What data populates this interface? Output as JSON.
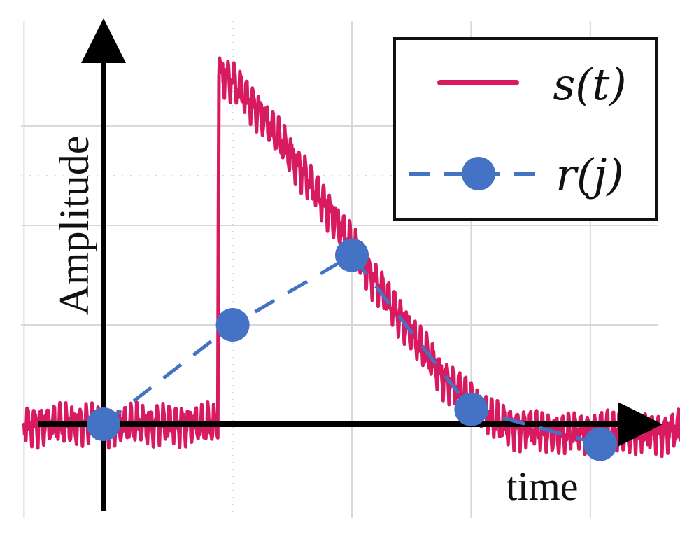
{
  "chart_data": {
    "type": "line",
    "xlabel": "time",
    "ylabel": "Amplitude",
    "grid": true,
    "legend_position": "top-right",
    "x_range": [
      -1.0,
      7.0
    ],
    "y_range": [
      -1.0,
      4.0
    ],
    "series": [
      {
        "name": "s(t)",
        "style": "solid",
        "color": "#d81b60",
        "noisy": true,
        "x": [
          -0.8,
          1.15,
          1.16,
          1.3,
          1.6,
          2.0,
          2.5,
          3.0,
          3.4,
          3.8,
          4.0,
          4.3,
          4.6,
          5.0,
          5.4,
          5.8,
          6.2
        ],
        "y": [
          0.0,
          0.0,
          3.55,
          3.45,
          3.1,
          2.55,
          1.8,
          1.05,
          0.5,
          0.15,
          0.0,
          -0.05,
          -0.1,
          -0.05,
          -0.1,
          -0.05,
          -0.05
        ]
      },
      {
        "name": "r(j)",
        "style": "dashed",
        "marker": "circle",
        "color": "#4472c4",
        "x": [
          0.0,
          1.3,
          2.5,
          3.7,
          5.0
        ],
        "y": [
          0.0,
          1.0,
          1.7,
          0.15,
          -0.2
        ]
      }
    ]
  },
  "legend": {
    "s_name": "s(t)",
    "r_name": "r(j)"
  },
  "axes": {
    "x_label": "time",
    "y_label": "Amplitude",
    "axis_color": "#000000",
    "grid_color": "#d9d9d9"
  }
}
